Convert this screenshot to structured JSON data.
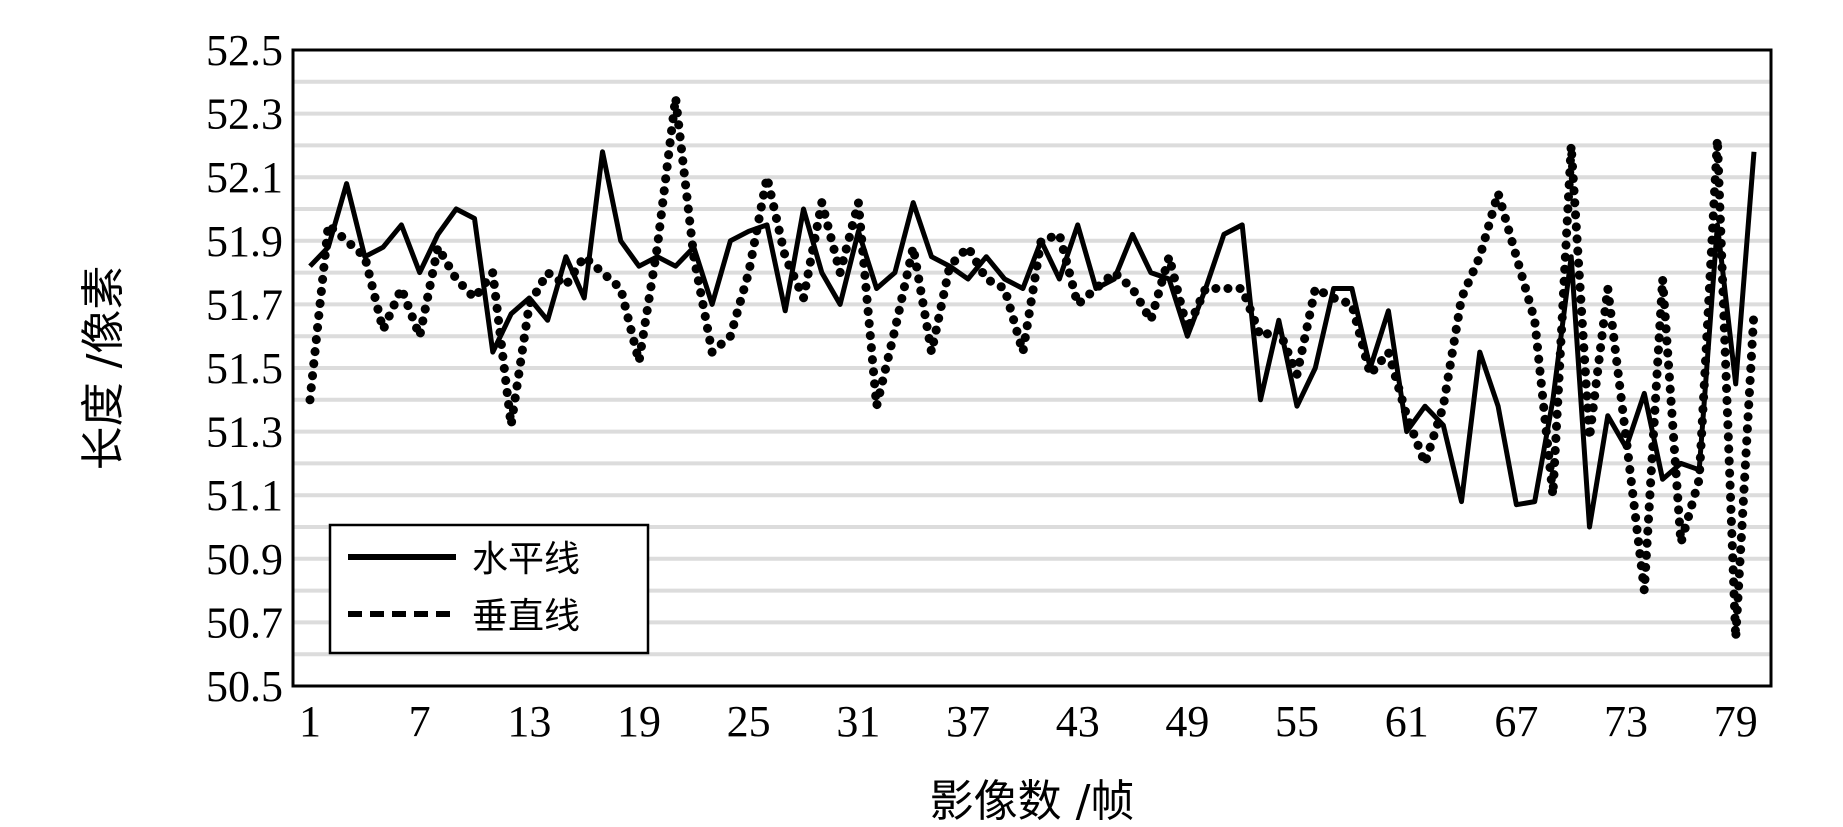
{
  "chart_data": {
    "type": "line",
    "xlabel": "影像数 /帧",
    "ylabel": "长度 /像素",
    "xlim": [
      1,
      80
    ],
    "ylim": [
      50.5,
      52.5
    ],
    "x_ticks": [
      1,
      7,
      13,
      19,
      25,
      31,
      37,
      43,
      49,
      55,
      61,
      67,
      73,
      79
    ],
    "y_ticks": [
      50.5,
      50.7,
      50.9,
      51.1,
      51.3,
      51.5,
      51.7,
      51.9,
      52.1,
      52.3,
      52.5
    ],
    "grid": "horizontal",
    "legend_position": "bottom-left",
    "series": [
      {
        "name": "水平线",
        "style": "solid",
        "color": "#000000",
        "values": [
          51.82,
          51.88,
          52.08,
          51.85,
          51.88,
          51.95,
          51.8,
          51.92,
          52.0,
          51.97,
          51.55,
          51.67,
          51.72,
          51.65,
          51.85,
          51.72,
          52.18,
          51.9,
          51.82,
          51.85,
          51.82,
          51.88,
          51.7,
          51.9,
          51.93,
          51.95,
          51.68,
          52.0,
          51.8,
          51.7,
          51.93,
          51.75,
          51.8,
          52.02,
          51.85,
          51.82,
          51.78,
          51.85,
          51.78,
          51.75,
          51.9,
          51.78,
          51.95,
          51.75,
          51.78,
          51.92,
          51.8,
          51.78,
          51.6,
          51.75,
          51.92,
          51.95,
          51.4,
          51.65,
          51.38,
          51.5,
          51.75,
          51.75,
          51.5,
          51.68,
          51.3,
          51.38,
          51.32,
          51.08,
          51.55,
          51.38,
          51.07,
          51.08,
          51.4,
          51.85,
          51.0,
          51.35,
          51.25,
          51.42,
          51.15,
          51.2,
          51.18,
          51.95,
          51.45,
          52.18
        ]
      },
      {
        "name": "垂直线",
        "style": "dotted",
        "color": "#000000",
        "values": [
          51.4,
          51.95,
          51.9,
          51.85,
          51.62,
          51.75,
          51.6,
          51.88,
          51.78,
          51.72,
          51.8,
          51.32,
          51.7,
          51.8,
          51.76,
          51.85,
          51.8,
          51.75,
          51.52,
          51.88,
          52.35,
          51.85,
          51.55,
          51.6,
          51.8,
          52.1,
          51.85,
          51.72,
          52.02,
          51.8,
          52.02,
          51.38,
          51.62,
          51.88,
          51.55,
          51.82,
          51.88,
          51.78,
          51.75,
          51.55,
          51.9,
          51.92,
          51.7,
          51.75,
          51.8,
          51.75,
          51.65,
          51.85,
          51.62,
          51.75,
          51.75,
          51.75,
          51.6,
          51.62,
          51.48,
          51.75,
          51.72,
          51.7,
          51.48,
          51.55,
          51.35,
          51.2,
          51.38,
          51.72,
          51.85,
          52.05,
          51.85,
          51.65,
          51.1,
          52.2,
          51.28,
          51.75,
          51.28,
          50.8,
          51.78,
          50.95,
          51.15,
          52.22,
          50.65,
          51.68
        ]
      }
    ]
  }
}
